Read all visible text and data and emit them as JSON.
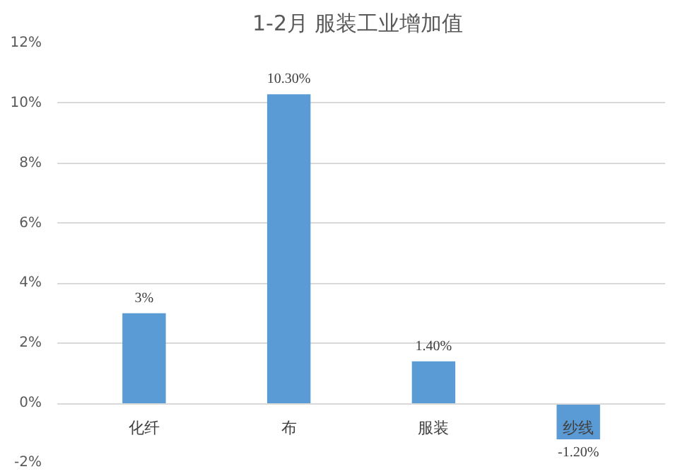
{
  "chart_data": {
    "type": "bar",
    "title": "1-2月  服装工业增加值",
    "categories": [
      "化纤",
      "布",
      "服装",
      "纱线"
    ],
    "values": [
      3,
      10.3,
      1.4,
      -1.2
    ],
    "color": "#5b9bd5",
    "value_labels": [
      "3%",
      "10.30%",
      "1.40%",
      "-1.20%"
    ],
    "ylim": [
      -2,
      12
    ],
    "yticks": [
      {
        "value": -2,
        "label": "-2%"
      },
      {
        "value": 0,
        "label": "0%"
      },
      {
        "value": 2,
        "label": "2%"
      },
      {
        "value": 4,
        "label": "4%"
      },
      {
        "value": 6,
        "label": "6%"
      },
      {
        "value": 8,
        "label": "8%"
      },
      {
        "value": 10,
        "label": "10%"
      },
      {
        "value": 12,
        "label": "12%"
      }
    ],
    "grid": "y"
  }
}
